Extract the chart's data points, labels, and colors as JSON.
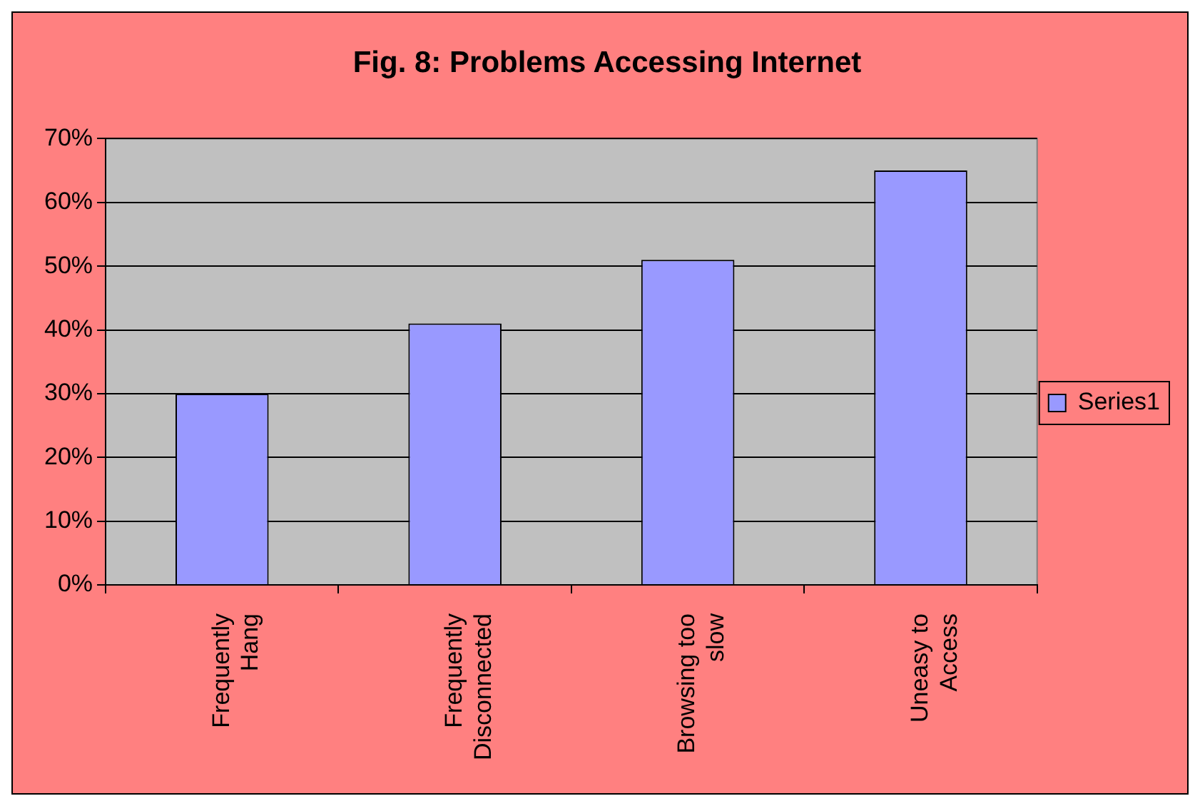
{
  "chart_data": {
    "type": "bar",
    "title": "Fig. 8: Problems Accessing Internet",
    "categories": [
      "Frequently Hang",
      "Frequently Disconnected",
      "Browsing too slow",
      "Uneasy to Access"
    ],
    "series": [
      {
        "name": "Series1",
        "color": "#9999ff",
        "values": [
          30,
          41,
          51,
          65
        ]
      }
    ],
    "ylim": [
      0,
      70
    ],
    "yticks": [
      {
        "value": 0,
        "label": "0%"
      },
      {
        "value": 10,
        "label": "10%"
      },
      {
        "value": 20,
        "label": "20%"
      },
      {
        "value": 30,
        "label": "30%"
      },
      {
        "value": 40,
        "label": "40%"
      },
      {
        "value": 50,
        "label": "50%"
      },
      {
        "value": 60,
        "label": "60%"
      },
      {
        "value": 70,
        "label": "70%"
      }
    ],
    "grid": "y",
    "legend": "right"
  }
}
